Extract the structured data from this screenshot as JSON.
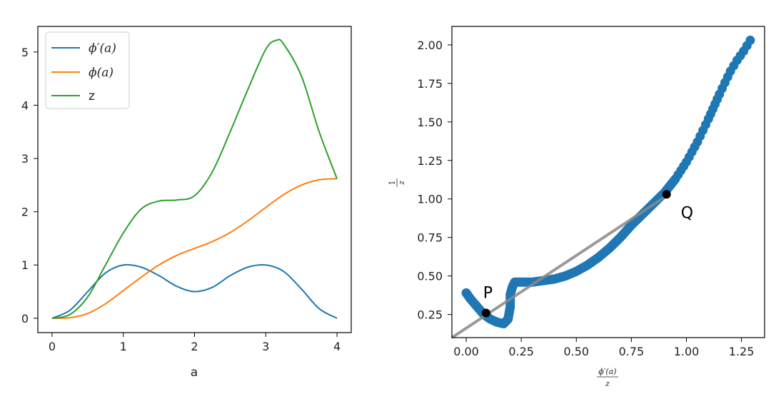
{
  "chart_data": [
    {
      "type": "line",
      "xlabel": "a",
      "ylabel": "",
      "xlim": [
        -0.2,
        4.2
      ],
      "ylim": [
        -0.27,
        5.48
      ],
      "xticks": [
        0,
        1,
        2,
        3,
        4
      ],
      "xtick_labels": [
        "0",
        "1",
        "2",
        "3",
        "4"
      ],
      "yticks": [
        0,
        1,
        2,
        3,
        4,
        5
      ],
      "ytick_labels": [
        "0",
        "1",
        "2",
        "3",
        "4",
        "5"
      ],
      "legend": "top-left",
      "grid": false,
      "series": [
        {
          "name": "ϕ′(a)",
          "color": "#1f77b4",
          "x": [
            0,
            0.25,
            0.5,
            0.75,
            1.0,
            1.25,
            1.5,
            1.75,
            2.0,
            2.25,
            2.5,
            2.75,
            3.0,
            3.25,
            3.5,
            3.75,
            4.0
          ],
          "y": [
            0,
            0.15,
            0.5,
            0.85,
            1.0,
            0.96,
            0.8,
            0.6,
            0.5,
            0.58,
            0.8,
            0.96,
            1.0,
            0.88,
            0.55,
            0.18,
            0
          ]
        },
        {
          "name": "ϕ(a)",
          "color": "#ff7f0e",
          "x": [
            0,
            0.25,
            0.5,
            0.75,
            1.0,
            1.25,
            1.5,
            1.75,
            2.0,
            2.25,
            2.5,
            2.75,
            3.0,
            3.25,
            3.5,
            3.75,
            4.0
          ],
          "y": [
            0,
            0.01,
            0.09,
            0.27,
            0.52,
            0.77,
            1.0,
            1.18,
            1.31,
            1.44,
            1.61,
            1.83,
            2.08,
            2.32,
            2.5,
            2.6,
            2.62
          ]
        },
        {
          "name": "z",
          "color": "#2ca02c",
          "x": [
            0,
            0.25,
            0.5,
            0.75,
            1.0,
            1.25,
            1.5,
            1.75,
            2.0,
            2.25,
            2.5,
            2.75,
            3.0,
            3.15,
            3.25,
            3.5,
            3.75,
            4.0
          ],
          "y": [
            0,
            0.07,
            0.4,
            1.0,
            1.6,
            2.05,
            2.2,
            2.22,
            2.3,
            2.75,
            3.5,
            4.3,
            5.05,
            5.22,
            5.15,
            4.55,
            3.5,
            2.62
          ]
        }
      ]
    },
    {
      "type": "scatter",
      "xlabel_num": "ϕ′(a)",
      "xlabel_den": "z",
      "ylabel_num": "1",
      "ylabel_den": "z",
      "xlim": [
        -0.065,
        1.355
      ],
      "ylim": [
        0.1,
        2.12
      ],
      "xticks": [
        0,
        0.25,
        0.5,
        0.75,
        1.0,
        1.25
      ],
      "xtick_labels": [
        "0.00",
        "0.25",
        "0.50",
        "0.75",
        "1.00",
        "1.25"
      ],
      "yticks": [
        0.25,
        0.5,
        0.75,
        1.0,
        1.25,
        1.5,
        1.75,
        2.0
      ],
      "ytick_labels": [
        "0.25",
        "0.50",
        "0.75",
        "1.00",
        "1.25",
        "1.50",
        "1.75",
        "2.00"
      ],
      "grid": false,
      "scatter_color": "#1f77b4",
      "points_x": [
        0.0,
        0.02,
        0.05,
        0.08,
        0.11,
        0.14,
        0.17,
        0.19,
        0.2,
        0.2,
        0.21,
        0.22,
        0.25,
        0.3,
        0.35,
        0.4,
        0.45,
        0.5,
        0.55,
        0.6,
        0.65,
        0.7,
        0.75,
        0.8,
        0.85,
        0.9,
        0.95,
        1.0,
        1.05,
        1.1,
        1.15,
        1.2,
        1.23,
        1.26,
        1.29
      ],
      "points_y": [
        0.39,
        0.35,
        0.3,
        0.25,
        0.22,
        0.2,
        0.19,
        0.22,
        0.3,
        0.38,
        0.43,
        0.46,
        0.46,
        0.46,
        0.47,
        0.48,
        0.5,
        0.53,
        0.57,
        0.62,
        0.68,
        0.75,
        0.83,
        0.9,
        0.97,
        1.04,
        1.13,
        1.24,
        1.37,
        1.52,
        1.68,
        1.83,
        1.9,
        1.96,
        2.03
      ],
      "line": {
        "color": "#888888",
        "x": [
          -0.065,
          0.91
        ],
        "y": [
          0.1,
          1.02
        ]
      },
      "annotations": [
        {
          "label": "P",
          "x": 0.09,
          "y": 0.26
        },
        {
          "label": "Q",
          "x": 0.91,
          "y": 1.03
        }
      ],
      "marker_color": "#000000"
    }
  ]
}
